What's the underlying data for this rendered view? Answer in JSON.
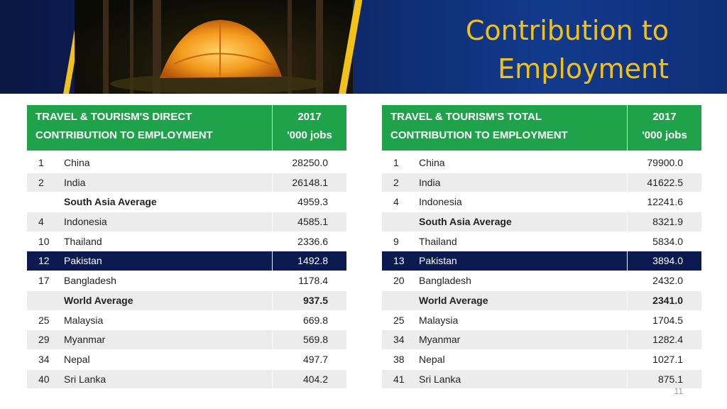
{
  "title_line1": "Contribution to",
  "title_line2": "Employment",
  "page_number": "11",
  "left_table": {
    "header_line1": "TRAVEL & TOURISM'S DIRECT",
    "header_line2": "CONTRIBUTION TO EMPLOYMENT",
    "col_line1": "2017",
    "col_line2": "'000 jobs",
    "rows": [
      {
        "rank": "1",
        "name": "China",
        "value": "28250.0",
        "style": ""
      },
      {
        "rank": "2",
        "name": "India",
        "value": "26148.1",
        "style": ""
      },
      {
        "rank": "",
        "name": "South Asia Average",
        "value": "4959.3",
        "style": "bold-name"
      },
      {
        "rank": "4",
        "name": "Indonesia",
        "value": "4585.1",
        "style": ""
      },
      {
        "rank": "10",
        "name": "Thailand",
        "value": "2336.6",
        "style": ""
      },
      {
        "rank": "12",
        "name": "Pakistan",
        "value": "1492.8",
        "style": "highlight"
      },
      {
        "rank": "17",
        "name": "Bangladesh",
        "value": "1178.4",
        "style": ""
      },
      {
        "rank": "",
        "name": "World Average",
        "value": "937.5",
        "style": "bold"
      },
      {
        "rank": "25",
        "name": "Malaysia",
        "value": "669.8",
        "style": ""
      },
      {
        "rank": "29",
        "name": "Myanmar",
        "value": "569.8",
        "style": ""
      },
      {
        "rank": "34",
        "name": "Nepal",
        "value": "497.7",
        "style": ""
      },
      {
        "rank": "40",
        "name": "Sri Lanka",
        "value": "404.2",
        "style": ""
      }
    ]
  },
  "right_table": {
    "header_line1": "TRAVEL & TOURISM'S TOTAL",
    "header_line2": "CONTRIBUTION TO EMPLOYMENT",
    "col_line1": "2017",
    "col_line2": "'000 jobs",
    "rows": [
      {
        "rank": "1",
        "name": "China",
        "value": "79900.0",
        "style": ""
      },
      {
        "rank": "2",
        "name": "India",
        "value": "41622.5",
        "style": ""
      },
      {
        "rank": "4",
        "name": "Indonesia",
        "value": "12241.6",
        "style": ""
      },
      {
        "rank": "",
        "name": "South Asia Average",
        "value": "8321.9",
        "style": "bold-name"
      },
      {
        "rank": "9",
        "name": "Thailand",
        "value": "5834.0",
        "style": ""
      },
      {
        "rank": "13",
        "name": "Pakistan",
        "value": "3894.0",
        "style": "highlight"
      },
      {
        "rank": "20",
        "name": "Bangladesh",
        "value": "2432.0",
        "style": ""
      },
      {
        "rank": "",
        "name": "World Average",
        "value": "2341.0",
        "style": "bold"
      },
      {
        "rank": "25",
        "name": "Malaysia",
        "value": "1704.5",
        "style": ""
      },
      {
        "rank": "34",
        "name": "Myanmar",
        "value": "1282.4",
        "style": ""
      },
      {
        "rank": "38",
        "name": "Nepal",
        "value": "1027.1",
        "style": ""
      },
      {
        "rank": "41",
        "name": "Sri Lanka",
        "value": "875.1",
        "style": ""
      }
    ]
  }
}
